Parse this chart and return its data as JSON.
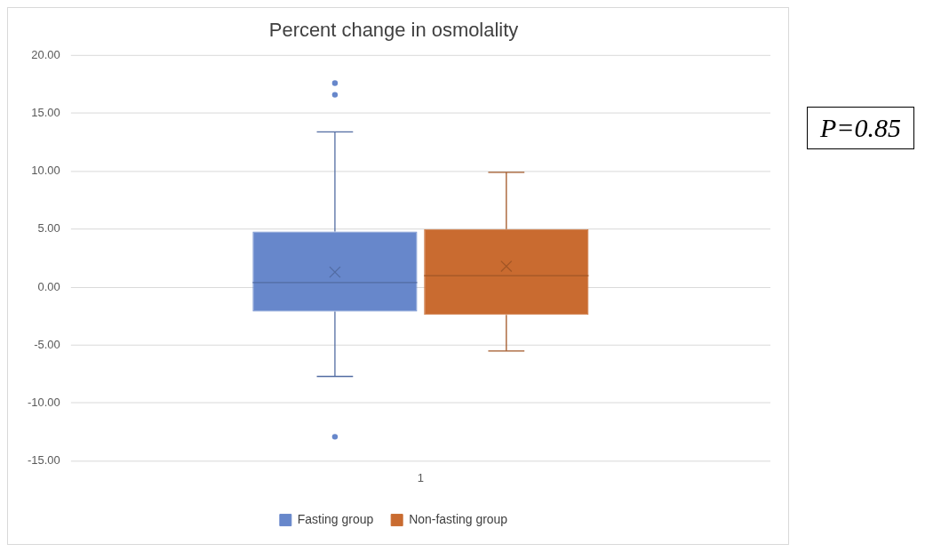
{
  "chart_data": {
    "type": "box",
    "title": "Percent change in osmolality",
    "categories": [
      "1"
    ],
    "series": [
      {
        "name": "Fasting group",
        "color": "#6787cb",
        "boxes": [
          {
            "low": -7.7,
            "q1": -2.1,
            "median": 0.4,
            "q3": 4.8,
            "high": 13.4,
            "mean": 1.3,
            "outliers": [
              17.6,
              16.6,
              -12.9
            ]
          }
        ]
      },
      {
        "name": "Non-fasting group",
        "color": "#c96b30",
        "boxes": [
          {
            "low": -5.5,
            "q1": -2.4,
            "median": 1.0,
            "q3": 5.0,
            "high": 9.9,
            "mean": 1.8
          }
        ]
      }
    ],
    "ylim": [
      -15,
      20
    ],
    "yticks": [
      {
        "value": -15,
        "label": "-15.00"
      },
      {
        "value": -10,
        "label": "-10.00"
      },
      {
        "value": -5,
        "label": "-5.00"
      },
      {
        "value": 0,
        "label": "0.00"
      },
      {
        "value": 5,
        "label": "5.00"
      },
      {
        "value": 10,
        "label": "10.00"
      },
      {
        "value": 15,
        "label": "15.00"
      },
      {
        "value": 20,
        "label": "20.00"
      }
    ],
    "grid": "y",
    "legend": "bottom",
    "annotations": [
      "P=0.85"
    ]
  }
}
